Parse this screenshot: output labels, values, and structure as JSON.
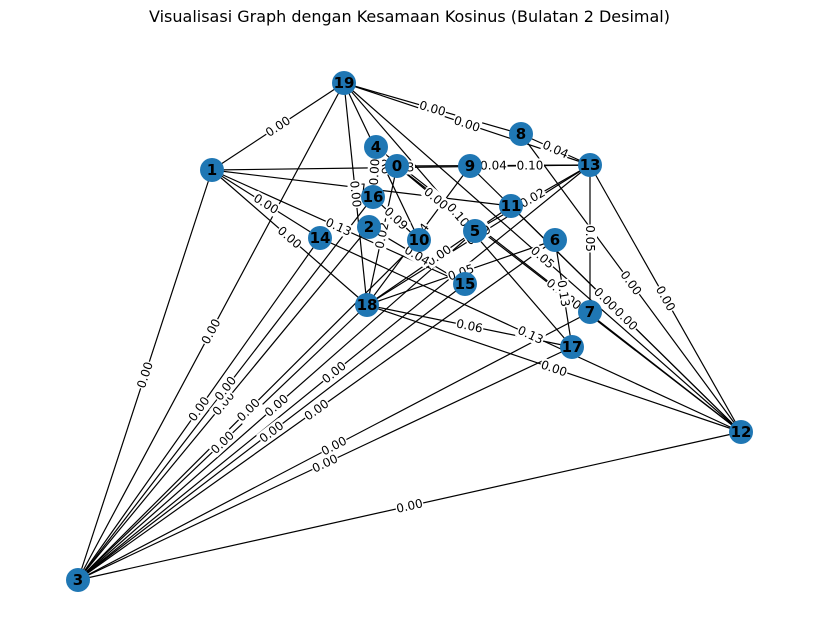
{
  "title": "Visualisasi Graph dengan Kesamaan Kosinus (Bulatan 2 Desimal)",
  "colors": {
    "node": "#1f77b4",
    "edge": "#000000",
    "background": "#ffffff"
  },
  "nodes": [
    "0",
    "1",
    "2",
    "3",
    "4",
    "5",
    "6",
    "7",
    "8",
    "9",
    "10",
    "11",
    "12",
    "13",
    "14",
    "15",
    "16",
    "17",
    "18",
    "19"
  ],
  "edges": [
    {
      "source": "1",
      "target": "19",
      "weight": "0.00"
    },
    {
      "source": "1",
      "target": "3",
      "weight": "0.00"
    },
    {
      "source": "1",
      "target": "13",
      "weight": "0.03"
    },
    {
      "source": "1",
      "target": "18",
      "weight": "0.00"
    },
    {
      "source": "1",
      "target": "14",
      "weight": "0.00"
    },
    {
      "source": "1",
      "target": "11",
      "weight": "0.17"
    },
    {
      "source": "1",
      "target": "15",
      "weight": "0.13"
    },
    {
      "source": "19",
      "target": "8",
      "weight": "0.00"
    },
    {
      "source": "19",
      "target": "13",
      "weight": "0.00"
    },
    {
      "source": "19",
      "target": "18",
      "weight": "0.00"
    },
    {
      "source": "19",
      "target": "3",
      "weight": "0.00"
    },
    {
      "source": "19",
      "target": "12",
      "weight": "0.05"
    },
    {
      "source": "19",
      "target": "17",
      "weight": "0.10"
    },
    {
      "source": "19",
      "target": "10",
      "weight": "0.00"
    },
    {
      "source": "3",
      "target": "12",
      "weight": "0.00"
    },
    {
      "source": "3",
      "target": "17",
      "weight": "0.00"
    },
    {
      "source": "3",
      "target": "18",
      "weight": "0.00"
    },
    {
      "source": "3",
      "target": "14",
      "weight": "0.00"
    },
    {
      "source": "3",
      "target": "15",
      "weight": "0.00"
    },
    {
      "source": "3",
      "target": "13",
      "weight": "0.00"
    },
    {
      "source": "3",
      "target": "5",
      "weight": "0.00"
    },
    {
      "source": "3",
      "target": "10",
      "weight": "0.00"
    },
    {
      "source": "3",
      "target": "2",
      "weight": "0.00"
    },
    {
      "source": "3",
      "target": "6",
      "weight": "0.00"
    },
    {
      "source": "3",
      "target": "7",
      "weight": "0.00"
    },
    {
      "source": "3",
      "target": "16",
      "weight": "0.00"
    },
    {
      "source": "12",
      "target": "13",
      "weight": "0.00"
    },
    {
      "source": "12",
      "target": "18",
      "weight": "0.00"
    },
    {
      "source": "12",
      "target": "8",
      "weight": "0.00"
    },
    {
      "source": "12",
      "target": "4",
      "weight": "0.13"
    },
    {
      "source": "12",
      "target": "9",
      "weight": "0.00"
    },
    {
      "source": "12",
      "target": "11",
      "weight": "0.00"
    },
    {
      "source": "12",
      "target": "14",
      "weight": "0.13"
    },
    {
      "source": "12",
      "target": "0",
      "weight": "0.00"
    },
    {
      "source": "18",
      "target": "13",
      "weight": "0.09"
    },
    {
      "source": "18",
      "target": "9",
      "weight": "0.04"
    },
    {
      "source": "18",
      "target": "17",
      "weight": "0.06"
    },
    {
      "source": "18",
      "target": "6",
      "weight": "0.05"
    },
    {
      "source": "18",
      "target": "0",
      "weight": "0.02"
    },
    {
      "source": "18",
      "target": "11",
      "weight": "0.00"
    },
    {
      "source": "13",
      "target": "8",
      "weight": "0.04"
    },
    {
      "source": "13",
      "target": "9",
      "weight": "0.10"
    },
    {
      "source": "13",
      "target": "0",
      "weight": "0.04"
    },
    {
      "source": "13",
      "target": "5",
      "weight": "0.02"
    },
    {
      "source": "13",
      "target": "7",
      "weight": "0.05"
    },
    {
      "source": "4",
      "target": "16",
      "weight": "0.00"
    },
    {
      "source": "16",
      "target": "10",
      "weight": "0.09"
    },
    {
      "source": "2",
      "target": "15",
      "weight": "0.04"
    },
    {
      "source": "6",
      "target": "17",
      "weight": "0.13"
    },
    {
      "source": "0",
      "target": "5",
      "weight": "0.00"
    }
  ]
}
